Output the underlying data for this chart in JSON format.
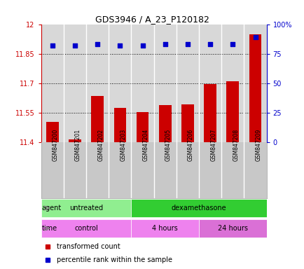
{
  "title": "GDS3946 / A_23_P120182",
  "samples": [
    "GSM847200",
    "GSM847201",
    "GSM847202",
    "GSM847203",
    "GSM847204",
    "GSM847205",
    "GSM847206",
    "GSM847207",
    "GSM847208",
    "GSM847209"
  ],
  "bar_values": [
    11.505,
    11.415,
    11.635,
    11.575,
    11.555,
    11.59,
    11.595,
    11.695,
    11.71,
    11.95
  ],
  "percentile_values": [
    82,
    82,
    83,
    82,
    82,
    83,
    83,
    83,
    83,
    89
  ],
  "ylim_left": [
    11.4,
    12.0
  ],
  "ylim_right": [
    0,
    100
  ],
  "yticks_left": [
    11.4,
    11.55,
    11.7,
    11.85,
    12.0
  ],
  "ytick_labels_left": [
    "11.4",
    "11.55",
    "11.7",
    "11.85",
    "12"
  ],
  "yticks_right": [
    0,
    25,
    50,
    75,
    100
  ],
  "ytick_labels_right": [
    "0",
    "25",
    "50",
    "75",
    "100%"
  ],
  "bar_color": "#cc0000",
  "dot_color": "#0000cc",
  "agent_labels": [
    {
      "label": "untreated",
      "start": 0,
      "end": 4,
      "color": "#90ee90"
    },
    {
      "label": "dexamethasone",
      "start": 4,
      "end": 10,
      "color": "#32cd32"
    }
  ],
  "time_labels": [
    {
      "label": "control",
      "start": 0,
      "end": 4,
      "color": "#ee82ee"
    },
    {
      "label": "4 hours",
      "start": 4,
      "end": 7,
      "color": "#ee82ee"
    },
    {
      "label": "24 hours",
      "start": 7,
      "end": 10,
      "color": "#da70d6"
    }
  ],
  "legend_bar_label": "transformed count",
  "legend_dot_label": "percentile rank within the sample",
  "tick_label_color_left": "#cc0000",
  "tick_label_color_right": "#0000cc",
  "background_color": "#ffffff",
  "plot_bg_color": "#d8d8d8",
  "sample_label_bg": "#c8c8c8",
  "border_color": "#aaaaaa"
}
